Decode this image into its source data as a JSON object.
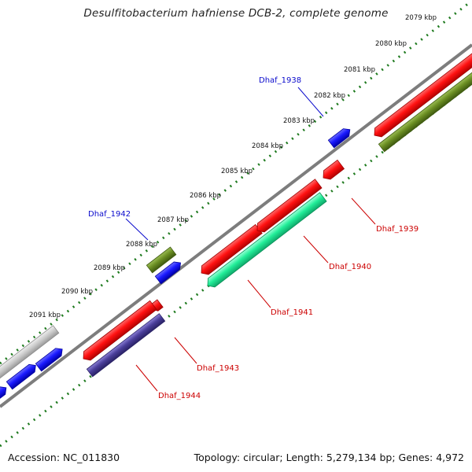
{
  "title": "Desulfitobacterium hafniense DCB-2, complete genome",
  "footer": {
    "accession": "Accession: NC_011830",
    "summary": "Topology: circular; Length: 5,279,134 bp; Genes: 4,972"
  },
  "colors": {
    "backbone": "#7d7d7d",
    "tick": "#1e7a1e",
    "label_forward": "#0a0acc",
    "label_reverse": "#cc0000",
    "gene_red": "#ff1111",
    "gene_blue": "#1a1aff",
    "gene_olive": "#6b8e23",
    "gene_grey": "#c8c8c8",
    "gene_green": "#22ee99",
    "gene_purple": "#4b3f9b"
  },
  "kbp_labels": [
    "2079 kbp",
    "2080 kbp",
    "2081 kbp",
    "2082 kbp",
    "2083 kbp",
    "2084 kbp",
    "2085 kbp",
    "2086 kbp",
    "2087 kbp",
    "2088 kbp",
    "2089 kbp",
    "2090 kbp",
    "2091 kbp"
  ],
  "gene_labels_forward": [
    "Dhaf_1938",
    "Dhaf_1942"
  ],
  "gene_labels_reverse": [
    "Dhaf_1939",
    "Dhaf_1940",
    "Dhaf_1941",
    "Dhaf_1943",
    "Dhaf_1944"
  ]
}
